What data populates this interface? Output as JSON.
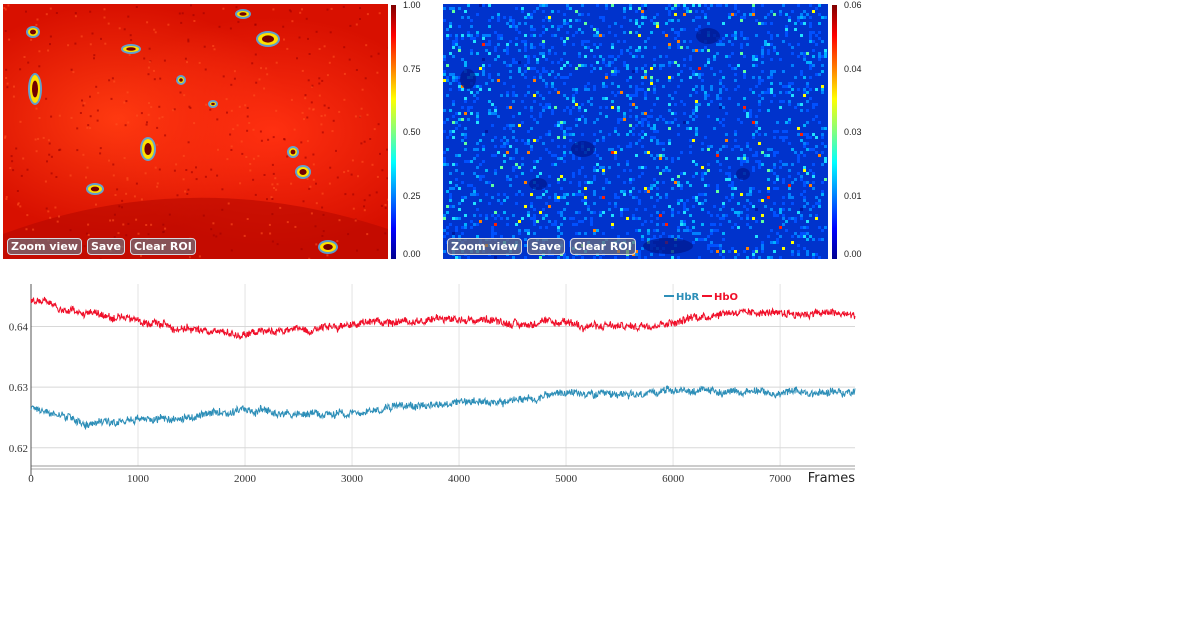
{
  "left_map": {
    "buttons": {
      "zoom": "Zoom view",
      "save": "Save",
      "clear_roi": "Clear ROI"
    },
    "colorbar_ticks": [
      "1.00",
      "0.75",
      "0.50",
      "0.25",
      "0.00"
    ]
  },
  "right_map": {
    "buttons": {
      "zoom": "Zoom view",
      "save": "Save",
      "clear_roi": "Clear ROI"
    },
    "colorbar_ticks": [
      "0.06",
      "0.04",
      "0.03",
      "0.01",
      "0.00"
    ]
  },
  "colors": {
    "hbr": "#2e8fb8",
    "hbo": "#f0102a"
  },
  "chart_data": {
    "type": "line",
    "title": "",
    "xlabel": "Frames",
    "ylabel": "",
    "xlim": [
      0,
      7700
    ],
    "ylim": [
      0.617,
      0.647
    ],
    "x_ticks": [
      0,
      1000,
      2000,
      3000,
      4000,
      5000,
      6000,
      7000
    ],
    "y_ticks": [
      0.62,
      0.63,
      0.64
    ],
    "y_tick_labels": [
      "0.62",
      "0.63",
      "0.64"
    ],
    "legend_position": "top-right",
    "grid": true,
    "series": [
      {
        "name": "HbR",
        "color": "#2e8fb8",
        "x": [
          0,
          250,
          500,
          750,
          1000,
          1500,
          2000,
          2500,
          3000,
          3500,
          4000,
          4500,
          5000,
          5500,
          6000,
          6500,
          7000,
          7500,
          7700
        ],
        "values": [
          0.6267,
          0.6255,
          0.624,
          0.6245,
          0.6248,
          0.625,
          0.6262,
          0.6255,
          0.6258,
          0.627,
          0.6275,
          0.6278,
          0.629,
          0.6285,
          0.6295,
          0.6292,
          0.629,
          0.6292,
          0.6292
        ]
      },
      {
        "name": "HbO",
        "color": "#f0102a",
        "x": [
          0,
          250,
          500,
          750,
          1000,
          1500,
          2000,
          2500,
          3000,
          3500,
          4000,
          4500,
          5000,
          5500,
          6000,
          6500,
          7000,
          7500,
          7700
        ],
        "values": [
          0.6445,
          0.6433,
          0.6422,
          0.6415,
          0.641,
          0.6395,
          0.6387,
          0.6395,
          0.6405,
          0.641,
          0.6413,
          0.6405,
          0.6405,
          0.6398,
          0.6408,
          0.6425,
          0.6423,
          0.6422,
          0.6418
        ]
      }
    ]
  }
}
